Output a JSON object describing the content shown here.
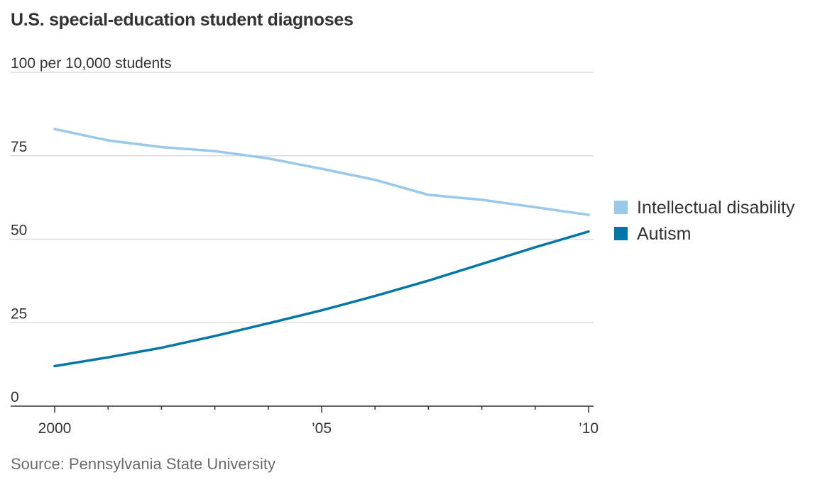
{
  "title": "U.S. special-education student diagnoses",
  "source": "Source: Pennsylvania State University",
  "chart_data": {
    "type": "line",
    "title": "U.S. special-education student diagnoses",
    "ylabel": "per 10,000 students",
    "xlabel": "",
    "x": [
      2000,
      2001,
      2002,
      2003,
      2004,
      2005,
      2006,
      2007,
      2008,
      2009,
      2010
    ],
    "xlim": [
      2000,
      2010
    ],
    "ylim": [
      0,
      100
    ],
    "y_ticks": [
      {
        "value": 0,
        "label": "0"
      },
      {
        "value": 25,
        "label": "25"
      },
      {
        "value": 50,
        "label": "50"
      },
      {
        "value": 75,
        "label": "75"
      },
      {
        "value": 100,
        "label": "100 per 10,000 students"
      }
    ],
    "x_ticks": [
      {
        "value": 2000,
        "label": "2000"
      },
      {
        "value": 2005,
        "label": "’05"
      },
      {
        "value": 2010,
        "label": "’10"
      }
    ],
    "grid": true,
    "legend": "right",
    "series": [
      {
        "name": "Intellectual disability",
        "color": "#98c9eb",
        "values": [
          83,
          79.6,
          77.6,
          76.4,
          74.2,
          71.1,
          67.8,
          63.3,
          61.8,
          59.6,
          57.3
        ]
      },
      {
        "name": "Autism",
        "color": "#0077a8",
        "values": [
          12,
          14.6,
          17.5,
          21,
          24.8,
          28.7,
          33,
          37.6,
          42.6,
          47.6,
          52.3
        ]
      }
    ]
  }
}
